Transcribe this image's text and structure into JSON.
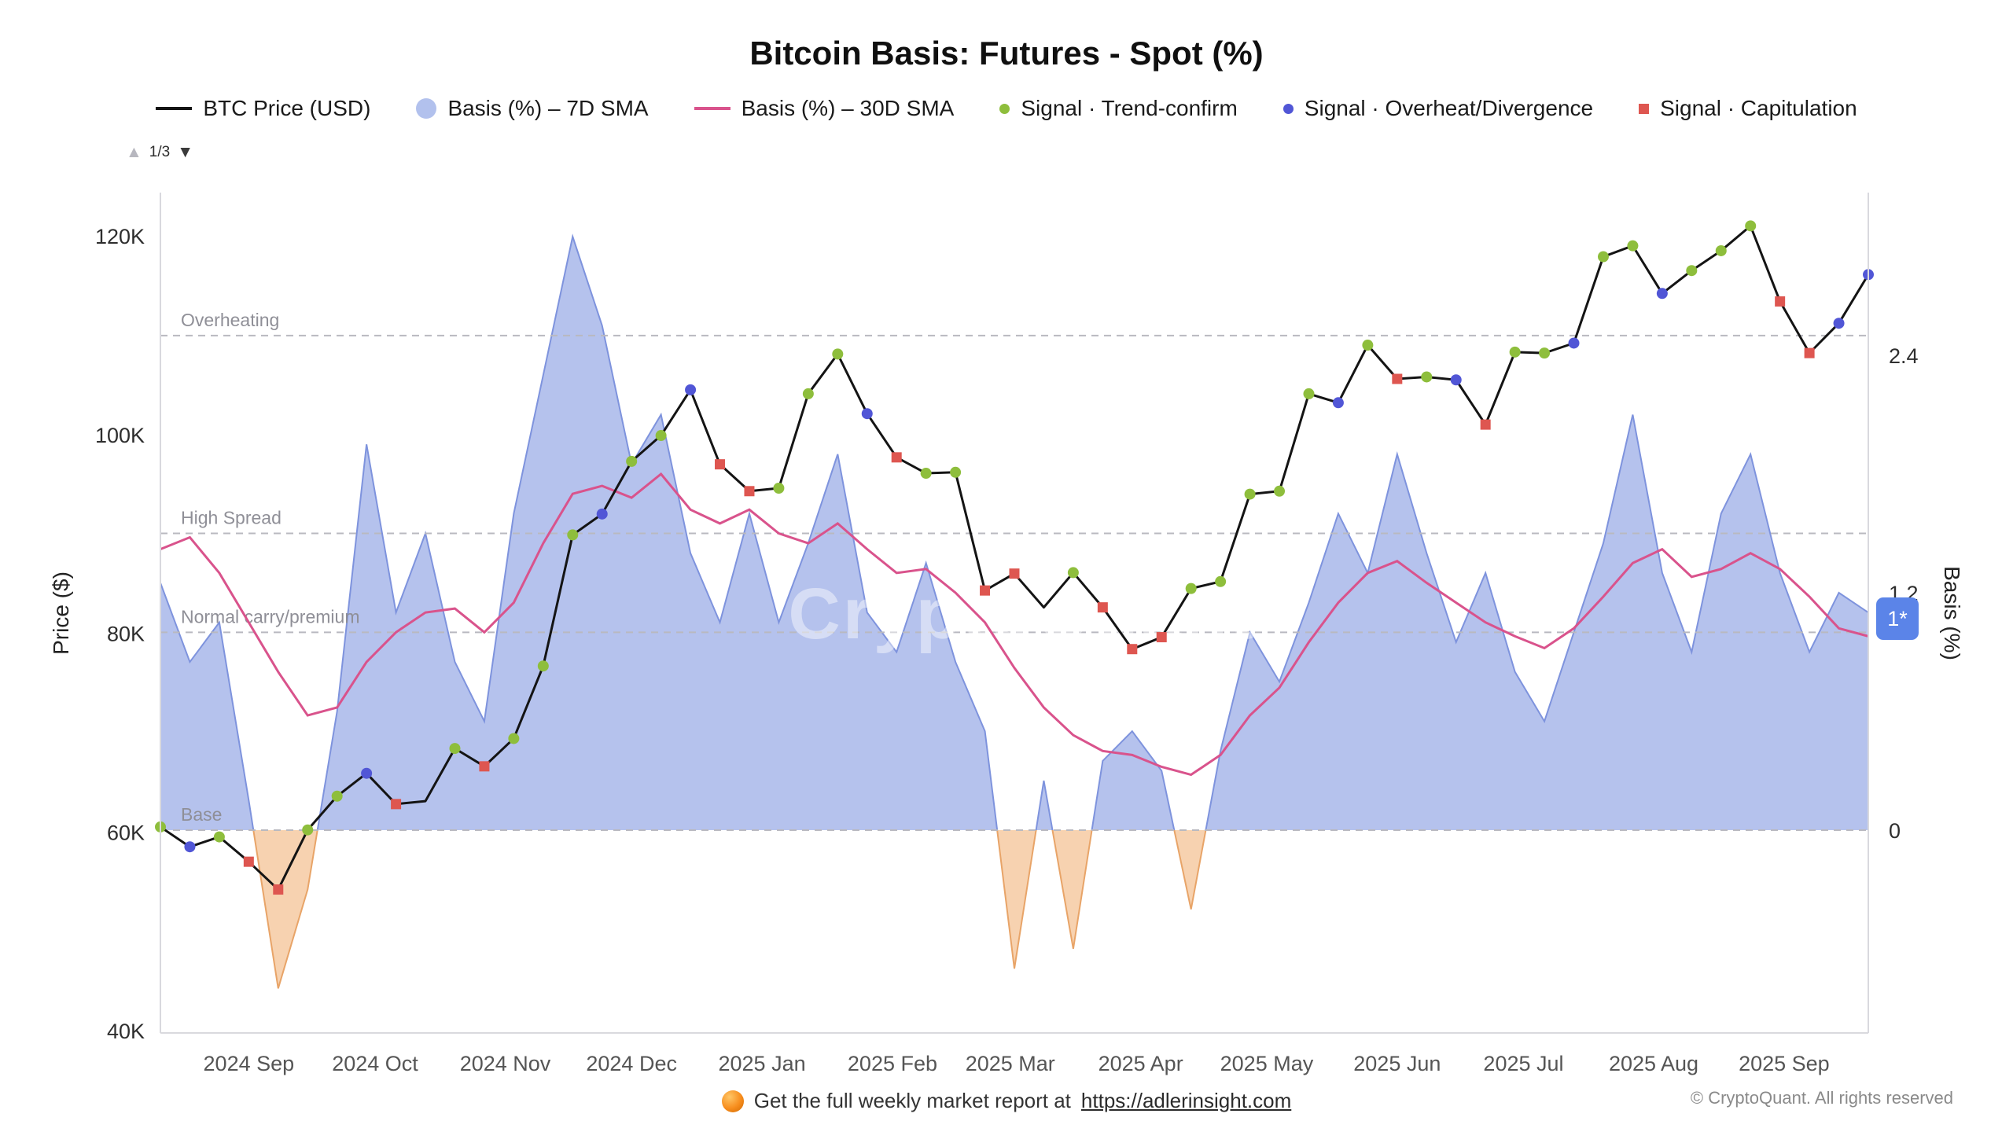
{
  "header": {
    "title": "Bitcoin Basis: Futures - Spot (%)"
  },
  "pagination": {
    "up": "▲",
    "label": "1/3",
    "down": "▼"
  },
  "legend": {
    "items": [
      {
        "label": "BTC Price (USD)",
        "marker": "line",
        "color": "#141414"
      },
      {
        "label": "Basis (%) – 7D SMA",
        "marker": "circle-large",
        "color": "#9fb1e8"
      },
      {
        "label": "Basis (%) – 30D SMA",
        "marker": "line",
        "color": "#d9538c"
      },
      {
        "label": "Signal · Trend-confirm",
        "marker": "dot",
        "color": "#8ebe3c"
      },
      {
        "label": "Signal · Overheat/Divergence",
        "marker": "dot",
        "color": "#5156d6"
      },
      {
        "label": "Signal · Capitulation",
        "marker": "square",
        "color": "#de5650"
      }
    ]
  },
  "axes": {
    "left_title": "Price ($)",
    "right_title": "Basis (%)"
  },
  "badge": {
    "text": "1*",
    "color": "#5b84e8"
  },
  "watermark": "CryptoQuant",
  "footer": {
    "report_text": "Get the full weekly market report at",
    "report_link": "https://adlerinsight.com",
    "copyright": "© CryptoQuant. All rights reserved"
  },
  "chart_data": {
    "type": "line",
    "title": "Bitcoin Basis: Futures - Spot (%)",
    "x_unit": "weekly",
    "dates": [
      "2024-08-11",
      "2024-08-18",
      "2024-08-25",
      "2024-09-01",
      "2024-09-08",
      "2024-09-15",
      "2024-09-22",
      "2024-09-29",
      "2024-10-06",
      "2024-10-13",
      "2024-10-20",
      "2024-10-27",
      "2024-11-03",
      "2024-11-10",
      "2024-11-17",
      "2024-11-24",
      "2024-12-01",
      "2024-12-08",
      "2024-12-15",
      "2024-12-22",
      "2024-12-29",
      "2025-01-05",
      "2025-01-12",
      "2025-01-19",
      "2025-01-26",
      "2025-02-02",
      "2025-02-09",
      "2025-02-16",
      "2025-02-23",
      "2025-03-02",
      "2025-03-09",
      "2025-03-16",
      "2025-03-23",
      "2025-03-30",
      "2025-04-06",
      "2025-04-13",
      "2025-04-20",
      "2025-04-27",
      "2025-05-04",
      "2025-05-11",
      "2025-05-18",
      "2025-05-25",
      "2025-06-01",
      "2025-06-08",
      "2025-06-15",
      "2025-06-22",
      "2025-06-29",
      "2025-07-06",
      "2025-07-13",
      "2025-07-20",
      "2025-07-27",
      "2025-08-03",
      "2025-08-10",
      "2025-08-17",
      "2025-08-24",
      "2025-08-31",
      "2025-09-07",
      "2025-09-14",
      "2025-09-21"
    ],
    "series": [
      {
        "name": "BTC Price (USD)",
        "axis": "price",
        "unit": "K USD",
        "values": [
          60.5,
          58.5,
          59.5,
          57.0,
          54.2,
          60.2,
          63.6,
          65.9,
          62.8,
          63.1,
          68.4,
          66.6,
          69.4,
          76.7,
          89.9,
          92.0,
          97.3,
          99.9,
          104.5,
          97.0,
          94.3,
          94.6,
          104.1,
          108.1,
          102.1,
          97.7,
          96.1,
          96.2,
          84.3,
          86.0,
          82.6,
          86.1,
          82.6,
          78.4,
          79.6,
          84.5,
          85.2,
          94.0,
          94.3,
          104.1,
          103.2,
          109.0,
          105.6,
          105.8,
          105.5,
          101.0,
          108.3,
          108.2,
          109.2,
          117.9,
          119.0,
          114.2,
          116.5,
          118.5,
          121.0,
          113.4,
          108.2,
          111.2,
          116.1
        ]
      },
      {
        "name": "Basis (%) – 7D SMA",
        "axis": "basis",
        "unit": "%",
        "style": "area",
        "values": [
          1.25,
          0.85,
          1.05,
          0.15,
          -0.8,
          -0.3,
          0.6,
          1.95,
          1.1,
          1.5,
          0.85,
          0.55,
          1.6,
          2.3,
          3.0,
          2.55,
          1.85,
          2.1,
          1.4,
          1.05,
          1.6,
          1.05,
          1.45,
          1.9,
          1.1,
          0.9,
          1.35,
          0.85,
          0.5,
          -0.7,
          0.25,
          -0.6,
          0.35,
          0.5,
          0.3,
          -0.4,
          0.4,
          1.0,
          0.75,
          1.15,
          1.6,
          1.3,
          1.9,
          1.4,
          0.95,
          1.3,
          0.8,
          0.55,
          1.0,
          1.45,
          2.1,
          1.3,
          0.9,
          1.6,
          1.9,
          1.3,
          0.9,
          1.2,
          1.1
        ]
      },
      {
        "name": "Basis (%) – 30D SMA",
        "axis": "basis",
        "unit": "%",
        "style": "line",
        "values": [
          1.42,
          1.48,
          1.3,
          1.05,
          0.8,
          0.58,
          0.62,
          0.85,
          1.0,
          1.1,
          1.12,
          1.0,
          1.15,
          1.45,
          1.7,
          1.74,
          1.68,
          1.8,
          1.62,
          1.55,
          1.62,
          1.5,
          1.45,
          1.55,
          1.42,
          1.3,
          1.32,
          1.2,
          1.05,
          0.82,
          0.62,
          0.48,
          0.4,
          0.38,
          0.32,
          0.28,
          0.38,
          0.58,
          0.72,
          0.95,
          1.15,
          1.3,
          1.36,
          1.25,
          1.15,
          1.05,
          0.98,
          0.92,
          1.02,
          1.18,
          1.35,
          1.42,
          1.28,
          1.32,
          1.4,
          1.32,
          1.18,
          1.02,
          0.98
        ]
      }
    ],
    "signals": [
      {
        "i": 0,
        "t": "trend"
      },
      {
        "i": 1,
        "t": "overheat"
      },
      {
        "i": 2,
        "t": "trend"
      },
      {
        "i": 3,
        "t": "capitulation"
      },
      {
        "i": 4,
        "t": "capitulation"
      },
      {
        "i": 5,
        "t": "trend"
      },
      {
        "i": 6,
        "t": "trend"
      },
      {
        "i": 7,
        "t": "overheat"
      },
      {
        "i": 8,
        "t": "capitulation"
      },
      {
        "i": 10,
        "t": "trend"
      },
      {
        "i": 11,
        "t": "capitulation"
      },
      {
        "i": 12,
        "t": "trend"
      },
      {
        "i": 13,
        "t": "trend"
      },
      {
        "i": 14,
        "t": "trend"
      },
      {
        "i": 15,
        "t": "overheat"
      },
      {
        "i": 16,
        "t": "trend"
      },
      {
        "i": 17,
        "t": "trend"
      },
      {
        "i": 18,
        "t": "overheat"
      },
      {
        "i": 19,
        "t": "capitulation"
      },
      {
        "i": 20,
        "t": "capitulation"
      },
      {
        "i": 21,
        "t": "trend"
      },
      {
        "i": 22,
        "t": "trend"
      },
      {
        "i": 23,
        "t": "trend"
      },
      {
        "i": 24,
        "t": "overheat"
      },
      {
        "i": 25,
        "t": "capitulation"
      },
      {
        "i": 26,
        "t": "trend"
      },
      {
        "i": 27,
        "t": "trend"
      },
      {
        "i": 28,
        "t": "capitulation"
      },
      {
        "i": 29,
        "t": "capitulation"
      },
      {
        "i": 31,
        "t": "trend"
      },
      {
        "i": 32,
        "t": "capitulation"
      },
      {
        "i": 33,
        "t": "capitulation"
      },
      {
        "i": 34,
        "t": "capitulation"
      },
      {
        "i": 35,
        "t": "trend"
      },
      {
        "i": 36,
        "t": "trend"
      },
      {
        "i": 37,
        "t": "trend"
      },
      {
        "i": 38,
        "t": "trend"
      },
      {
        "i": 39,
        "t": "trend"
      },
      {
        "i": 40,
        "t": "overheat"
      },
      {
        "i": 41,
        "t": "trend"
      },
      {
        "i": 42,
        "t": "capitulation"
      },
      {
        "i": 43,
        "t": "trend"
      },
      {
        "i": 44,
        "t": "overheat"
      },
      {
        "i": 45,
        "t": "capitulation"
      },
      {
        "i": 46,
        "t": "trend"
      },
      {
        "i": 47,
        "t": "trend"
      },
      {
        "i": 48,
        "t": "overheat"
      },
      {
        "i": 49,
        "t": "trend"
      },
      {
        "i": 50,
        "t": "trend"
      },
      {
        "i": 51,
        "t": "overheat"
      },
      {
        "i": 52,
        "t": "trend"
      },
      {
        "i": 53,
        "t": "trend"
      },
      {
        "i": 54,
        "t": "trend"
      },
      {
        "i": 55,
        "t": "capitulation"
      },
      {
        "i": 56,
        "t": "capitulation"
      },
      {
        "i": 57,
        "t": "overheat"
      },
      {
        "i": 58,
        "t": "overheat"
      }
    ],
    "price_axis": {
      "label": "Price ($)",
      "range": [
        40,
        125
      ],
      "ticks": [
        {
          "v": 40,
          "label": "40K"
        },
        {
          "v": 60,
          "label": "60K"
        },
        {
          "v": 80,
          "label": "80K"
        },
        {
          "v": 100,
          "label": "100K"
        },
        {
          "v": 120,
          "label": "120K"
        }
      ]
    },
    "basis_axis": {
      "label": "Basis (%)",
      "range": [
        -1.3,
        3.1
      ],
      "ticks": [
        {
          "v": 0,
          "label": "0"
        },
        {
          "v": 1.2,
          "label": "1.2"
        },
        {
          "v": 2.4,
          "label": "2.4"
        }
      ]
    },
    "x_ticks": [
      {
        "pos": 3.0,
        "label": "2024 Sep"
      },
      {
        "pos": 7.29,
        "label": "2024 Oct"
      },
      {
        "pos": 11.71,
        "label": "2024 Nov"
      },
      {
        "pos": 16.0,
        "label": "2024 Dec"
      },
      {
        "pos": 20.43,
        "label": "2025 Jan"
      },
      {
        "pos": 24.86,
        "label": "2025 Feb"
      },
      {
        "pos": 28.86,
        "label": "2025 Mar"
      },
      {
        "pos": 33.29,
        "label": "2025 Apr"
      },
      {
        "pos": 37.57,
        "label": "2025 May"
      },
      {
        "pos": 42.0,
        "label": "2025 Jun"
      },
      {
        "pos": 46.29,
        "label": "2025 Jul"
      },
      {
        "pos": 50.71,
        "label": "2025 Aug"
      },
      {
        "pos": 55.14,
        "label": "2025 Sep"
      }
    ],
    "ref_lines": [
      {
        "v": 2.5,
        "label": "Overheating"
      },
      {
        "v": 1.5,
        "label": "High Spread"
      },
      {
        "v": 1.0,
        "label": "Normal carry/premium"
      },
      {
        "v": 0,
        "label": "Base"
      }
    ],
    "grid": false,
    "legend_position": "top",
    "colors": {
      "price": "#141414",
      "basis_7d_fill_pos": "#a8b7ea",
      "basis_7d_stroke_pos": "#7e93dd",
      "basis_7d_fill_neg": "#f6cda7",
      "basis_7d_stroke_neg": "#e8a468",
      "basis_30d": "#d9538c",
      "signal_trend": "#8ebe3c",
      "signal_overheat": "#5156d6",
      "signal_capitulation": "#de5650",
      "ref_line": "#b9b9c0",
      "axis_line": "#d9d9de"
    }
  }
}
